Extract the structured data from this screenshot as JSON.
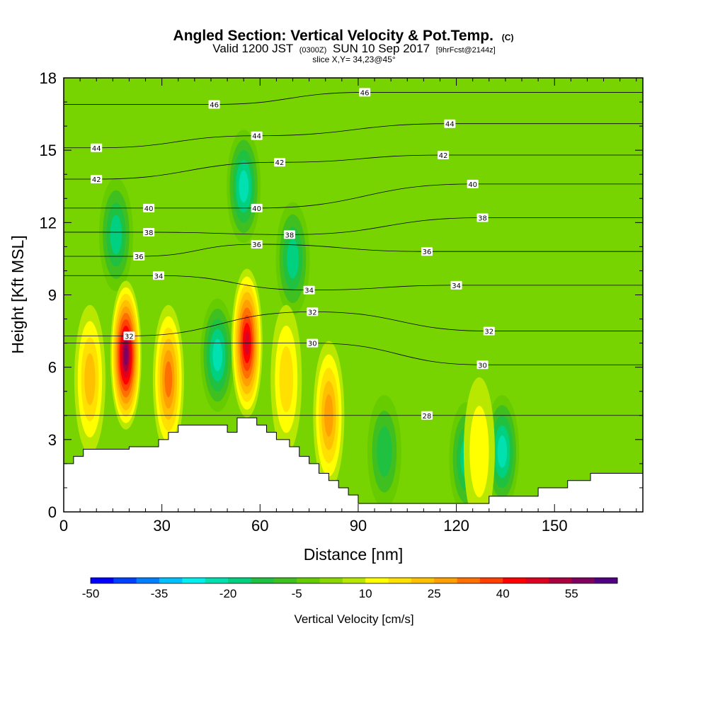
{
  "title": {
    "line1": "Angled Section: Vertical Velocity & Pot.Temp.",
    "line1_tag": "(C)",
    "line2_a": "Valid 1200 JST",
    "line2_b": "(0300Z)",
    "line2_c": "SUN 10 Sep 2017",
    "line2_d": "[9hrFcst@2144z]",
    "line3": "slice X,Y= 34,23@45°"
  },
  "chart_data": {
    "type": "heatmap",
    "xlabel": "Distance [nm]",
    "ylabel": "Height [Kft MSL]",
    "xlim": [
      0,
      177
    ],
    "ylim": [
      0,
      18
    ],
    "x_ticks": [
      0,
      30,
      60,
      90,
      120,
      150
    ],
    "y_ticks": [
      0,
      3,
      6,
      9,
      12,
      15,
      18
    ],
    "grid": false,
    "colorbar": {
      "label": "Vertical Velocity [cm/s]",
      "tick_labels": [
        "-50",
        "-35",
        "-20",
        "-5",
        "10",
        "25",
        "40",
        "55"
      ],
      "levels": [
        -50,
        -45,
        -40,
        -35,
        -30,
        -25,
        -20,
        -15,
        -10,
        -5,
        0,
        5,
        10,
        15,
        20,
        25,
        30,
        35,
        40,
        45,
        50,
        55,
        60
      ],
      "colors": [
        "#0000ff",
        "#0040ff",
        "#0080ff",
        "#00c0ff",
        "#00f0f0",
        "#00e0b0",
        "#00d080",
        "#20c040",
        "#40c020",
        "#66cc00",
        "#88d800",
        "#b8e800",
        "#ffff00",
        "#ffe000",
        "#ffc000",
        "#ffa000",
        "#ff7000",
        "#ff4000",
        "#ff0000",
        "#dd0020",
        "#aa0040",
        "#800060",
        "#500080"
      ]
    },
    "updraft_cores": [
      {
        "x": 19,
        "z": 6.5,
        "w": 55
      },
      {
        "x": 32,
        "z": 5.5,
        "w": 30
      },
      {
        "x": 8,
        "z": 5.5,
        "w": 20
      },
      {
        "x": 56,
        "z": 7,
        "w": 45
      },
      {
        "x": 68,
        "z": 5.5,
        "w": 15
      },
      {
        "x": 81,
        "z": 4,
        "w": 25
      },
      {
        "x": 127,
        "z": 2.5,
        "w": 12
      }
    ],
    "downdraft_cores": [
      {
        "x": 16,
        "z": 11.5,
        "w": -20
      },
      {
        "x": 47,
        "z": 6.5,
        "w": -25
      },
      {
        "x": 55,
        "z": 13.5,
        "w": -25
      },
      {
        "x": 70,
        "z": 10.5,
        "w": -20
      },
      {
        "x": 98,
        "z": 2.5,
        "w": -15
      },
      {
        "x": 123,
        "z": 2.2,
        "w": -20
      },
      {
        "x": 134,
        "z": 2.5,
        "w": -25
      }
    ],
    "isentropes": [
      {
        "value": 28,
        "labels": [
          {
            "x": 111,
            "z": 4.0
          }
        ]
      },
      {
        "value": 30,
        "labels": [
          {
            "x": 76,
            "z": 7.0
          },
          {
            "x": 128,
            "z": 6.1
          }
        ]
      },
      {
        "value": 32,
        "labels": [
          {
            "x": 20,
            "z": 7.3
          },
          {
            "x": 76,
            "z": 8.3
          },
          {
            "x": 130,
            "z": 7.5
          }
        ]
      },
      {
        "value": 34,
        "labels": [
          {
            "x": 29,
            "z": 9.8
          },
          {
            "x": 75,
            "z": 9.2
          },
          {
            "x": 120,
            "z": 9.4
          }
        ]
      },
      {
        "value": 36,
        "labels": [
          {
            "x": 23,
            "z": 10.6
          },
          {
            "x": 59,
            "z": 11.1
          },
          {
            "x": 111,
            "z": 10.8
          }
        ]
      },
      {
        "value": 38,
        "labels": [
          {
            "x": 26,
            "z": 11.6
          },
          {
            "x": 69,
            "z": 11.5
          },
          {
            "x": 128,
            "z": 12.2
          }
        ]
      },
      {
        "value": 40,
        "labels": [
          {
            "x": 26,
            "z": 12.6
          },
          {
            "x": 59,
            "z": 12.6
          },
          {
            "x": 125,
            "z": 13.6
          }
        ]
      },
      {
        "value": 42,
        "labels": [
          {
            "x": 10,
            "z": 13.8
          },
          {
            "x": 66,
            "z": 14.5
          },
          {
            "x": 116,
            "z": 14.8
          }
        ]
      },
      {
        "value": 44,
        "labels": [
          {
            "x": 10,
            "z": 15.1
          },
          {
            "x": 59,
            "z": 15.6
          },
          {
            "x": 118,
            "z": 16.1
          }
        ]
      },
      {
        "value": 46,
        "labels": [
          {
            "x": 46,
            "z": 16.9
          },
          {
            "x": 92,
            "z": 17.4
          }
        ]
      }
    ],
    "terrain": [
      [
        0,
        2
      ],
      [
        3,
        2
      ],
      [
        3,
        2.3
      ],
      [
        6,
        2.3
      ],
      [
        6,
        2.6
      ],
      [
        20,
        2.6
      ],
      [
        20,
        2.7
      ],
      [
        29,
        2.7
      ],
      [
        29,
        3.0
      ],
      [
        32,
        3.0
      ],
      [
        32,
        3.3
      ],
      [
        35,
        3.3
      ],
      [
        35,
        3.6
      ],
      [
        50,
        3.6
      ],
      [
        50,
        3.3
      ],
      [
        53,
        3.3
      ],
      [
        53,
        3.9
      ],
      [
        59,
        3.9
      ],
      [
        59,
        3.6
      ],
      [
        62,
        3.6
      ],
      [
        62,
        3.3
      ],
      [
        65,
        3.3
      ],
      [
        65,
        3.0
      ],
      [
        69,
        3.0
      ],
      [
        69,
        2.7
      ],
      [
        72,
        2.7
      ],
      [
        72,
        2.3
      ],
      [
        75,
        2.3
      ],
      [
        75,
        2.0
      ],
      [
        78,
        2.0
      ],
      [
        78,
        1.6
      ],
      [
        81,
        1.6
      ],
      [
        81,
        1.3
      ],
      [
        84,
        1.3
      ],
      [
        84,
        1.0
      ],
      [
        87,
        1.0
      ],
      [
        87,
        0.7
      ],
      [
        90,
        0.7
      ],
      [
        90,
        0.35
      ],
      [
        130,
        0.35
      ],
      [
        130,
        0.65
      ],
      [
        145,
        0.65
      ],
      [
        145,
        1.0
      ],
      [
        154,
        1.0
      ],
      [
        154,
        1.3
      ],
      [
        161,
        1.3
      ],
      [
        161,
        1.6
      ],
      [
        177,
        1.6
      ]
    ]
  }
}
